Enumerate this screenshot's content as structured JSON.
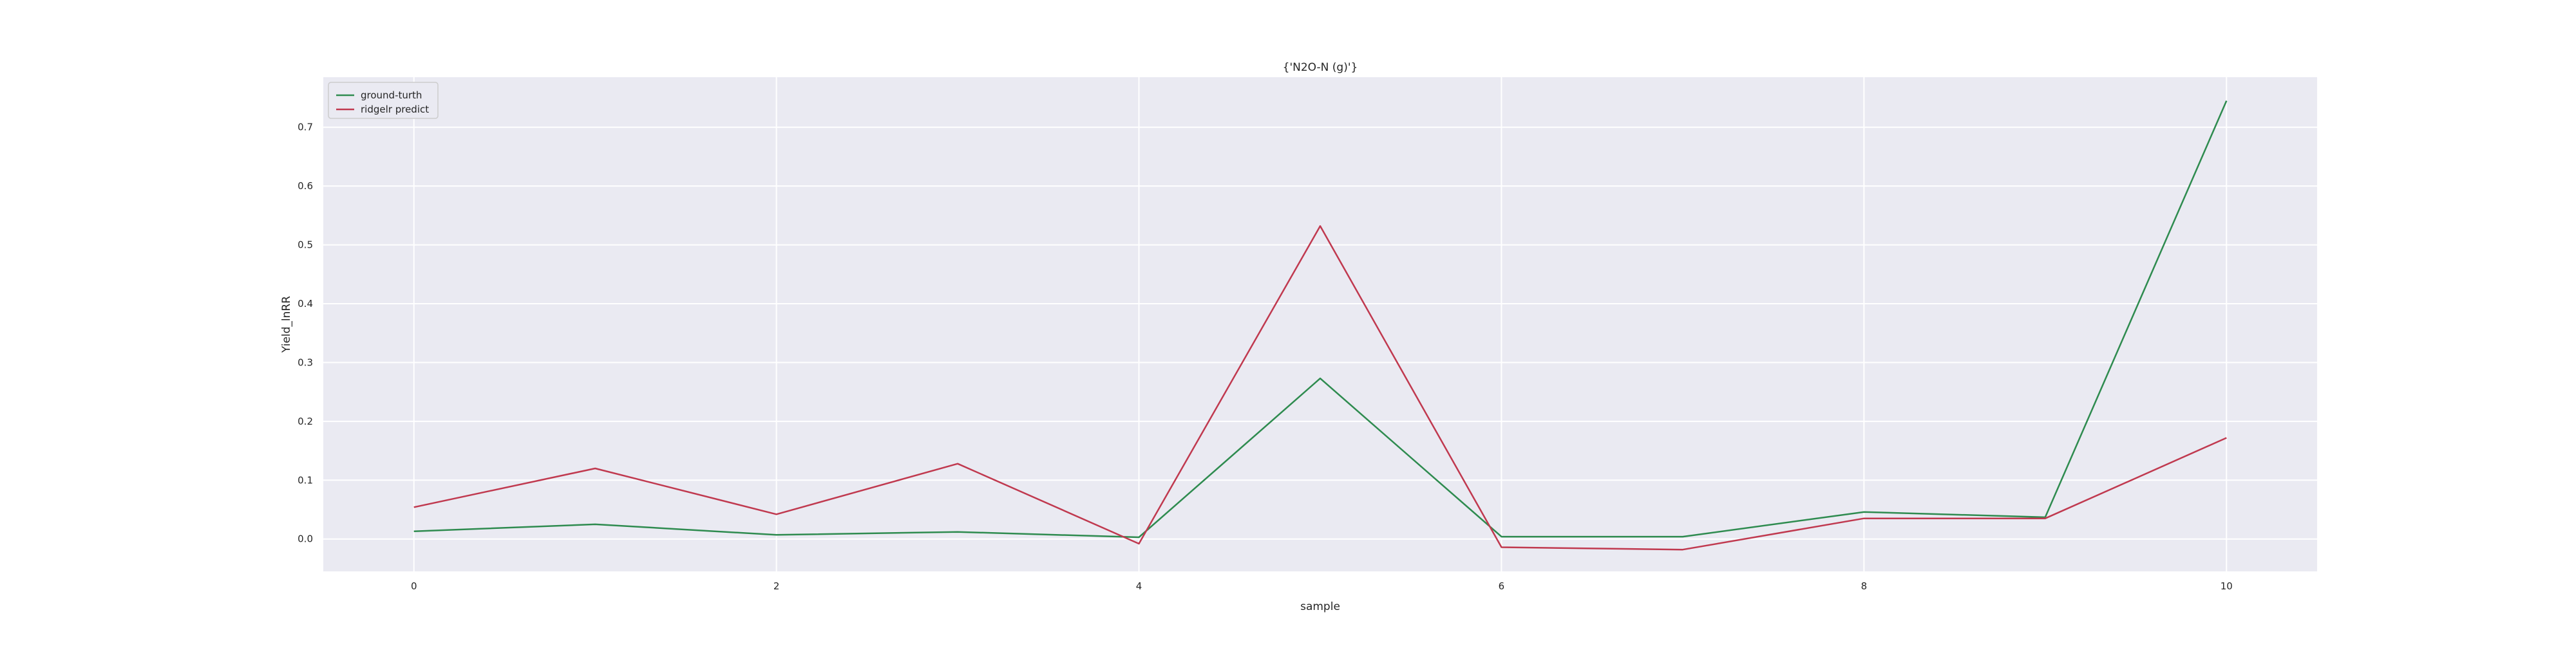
{
  "chart_data": {
    "type": "line",
    "title": "{'N2O-N (g)'}",
    "xlabel": "sample",
    "ylabel": "Yield_lnRR",
    "x": [
      0,
      1,
      2,
      3,
      4,
      5,
      6,
      7,
      8,
      9,
      10
    ],
    "series": [
      {
        "name": "ground-turth",
        "color": "#2e8b4f",
        "values": [
          0.013,
          0.025,
          0.007,
          0.012,
          0.003,
          0.273,
          0.004,
          0.004,
          0.046,
          0.037,
          0.745
        ]
      },
      {
        "name": "ridgelr predict",
        "color": "#c0394f",
        "values": [
          0.054,
          0.12,
          0.042,
          0.128,
          -0.008,
          0.532,
          -0.014,
          -0.018,
          0.035,
          0.035,
          0.172
        ]
      }
    ],
    "xlim": [
      -0.5,
      10.5
    ],
    "ylim": [
      -0.055,
      0.785
    ],
    "xticks": [
      0,
      2,
      4,
      6,
      8,
      10
    ],
    "yticks": [
      0.0,
      0.1,
      0.2,
      0.3,
      0.4,
      0.5,
      0.6,
      0.7
    ],
    "ytick_labels": [
      "0.0",
      "0.1",
      "0.2",
      "0.3",
      "0.4",
      "0.5",
      "0.6",
      "0.7"
    ],
    "grid": true,
    "legend_position": "top-left",
    "background_color": "#eaeaf2",
    "grid_color": "#ffffff"
  }
}
